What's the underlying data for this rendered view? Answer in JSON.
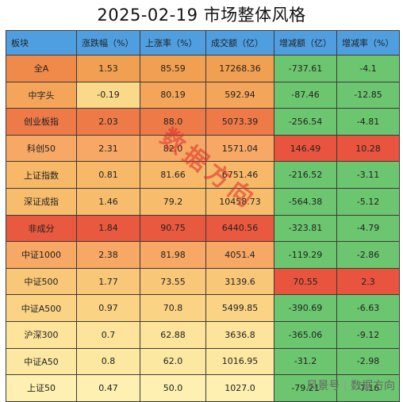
{
  "title": "2025-02-19  市场整体风格",
  "headers": [
    "板块",
    "涨跌幅（%）",
    "上涨率（%）",
    "成交额（亿）",
    "增减额（亿）",
    "增减率（%）"
  ],
  "rows": [
    {
      "name": "全A",
      "pct": "1.53",
      "up": "85.59",
      "vol": "17268.36",
      "inc": "-737.61",
      "rate": "-4.1",
      "colors": [
        "#f08a4b",
        "#f0a050",
        "#f0a050",
        "#f0a050",
        "#6cc56f",
        "#6cc56f"
      ]
    },
    {
      "name": "中字头",
      "pct": "-0.19",
      "up": "80.19",
      "vol": "592.94",
      "inc": "-87.46",
      "rate": "-12.85",
      "colors": [
        "#f5a55a",
        "#fad98a",
        "#f5a55a",
        "#f5a55a",
        "#6cc56f",
        "#6cc56f"
      ]
    },
    {
      "name": "创业板指",
      "pct": "2.03",
      "up": "88.0",
      "vol": "5073.39",
      "inc": "-256.54",
      "rate": "-4.81",
      "colors": [
        "#ee7a48",
        "#ee7a48",
        "#ee7a48",
        "#ee7a48",
        "#6cc56f",
        "#6cc56f"
      ]
    },
    {
      "name": "科创50",
      "pct": "2.31",
      "up": "82.0",
      "vol": "1571.04",
      "inc": "146.49",
      "rate": "10.28",
      "colors": [
        "#f6a864",
        "#f6a864",
        "#f6a864",
        "#f6a864",
        "#e8543e",
        "#e8543e"
      ]
    },
    {
      "name": "上证指数",
      "pct": "0.81",
      "up": "81.66",
      "vol": "6751.46",
      "inc": "-216.52",
      "rate": "-3.11",
      "colors": [
        "#f7b868",
        "#f7b868",
        "#f7b868",
        "#f7b868",
        "#6cc56f",
        "#6cc56f"
      ]
    },
    {
      "name": "深证成指",
      "pct": "1.46",
      "up": "79.2",
      "vol": "10458.73",
      "inc": "-564.38",
      "rate": "-5.12",
      "colors": [
        "#f8bd6c",
        "#f8bd6c",
        "#f8bd6c",
        "#f8bd6c",
        "#6cc56f",
        "#6cc56f"
      ]
    },
    {
      "name": "非成分",
      "pct": "1.84",
      "up": "90.75",
      "vol": "6440.56",
      "inc": "-323.81",
      "rate": "-4.79",
      "colors": [
        "#e9593f",
        "#e9593f",
        "#e9593f",
        "#e9593f",
        "#6cc56f",
        "#6cc56f"
      ]
    },
    {
      "name": "中证1000",
      "pct": "2.38",
      "up": "81.98",
      "vol": "4051.4",
      "inc": "-119.29",
      "rate": "-2.86",
      "colors": [
        "#f6a864",
        "#f6a864",
        "#f6a864",
        "#f6a864",
        "#6cc56f",
        "#6cc56f"
      ]
    },
    {
      "name": "中证500",
      "pct": "1.77",
      "up": "73.55",
      "vol": "3139.6",
      "inc": "70.55",
      "rate": "2.3",
      "colors": [
        "#f9c778",
        "#f9c778",
        "#f9c778",
        "#f9c778",
        "#e8543e",
        "#e8543e"
      ]
    },
    {
      "name": "中证A500",
      "pct": "0.97",
      "up": "70.8",
      "vol": "5499.85",
      "inc": "-390.69",
      "rate": "-6.63",
      "colors": [
        "#fbd385",
        "#fbd385",
        "#fbd385",
        "#fbd385",
        "#6cc56f",
        "#6cc56f"
      ]
    },
    {
      "name": "沪深300",
      "pct": "0.7",
      "up": "62.88",
      "vol": "3636.8",
      "inc": "-365.06",
      "rate": "-9.12",
      "colors": [
        "#fde49a",
        "#fde49a",
        "#fde49a",
        "#fde49a",
        "#6cc56f",
        "#6cc56f"
      ]
    },
    {
      "name": "中证A50",
      "pct": "0.8",
      "up": "62.0",
      "vol": "1016.95",
      "inc": "-31.2",
      "rate": "-2.98",
      "colors": [
        "#fde8a2",
        "#fde8a2",
        "#fde8a2",
        "#fde8a2",
        "#6cc56f",
        "#6cc56f"
      ]
    },
    {
      "name": "上证50",
      "pct": "0.47",
      "up": "50.0",
      "vol": "1027.0",
      "inc": "-79.21",
      "rate": "-7.16",
      "colors": [
        "#fdf0b0",
        "#fdf0b0",
        "#fdf0b0",
        "#fdf0b0",
        "#6cc56f",
        "#6cc56f"
      ]
    }
  ],
  "watermark": "数据方向",
  "footer": {
    "platform": "风景号",
    "separator": "|",
    "author": "数据方向"
  }
}
